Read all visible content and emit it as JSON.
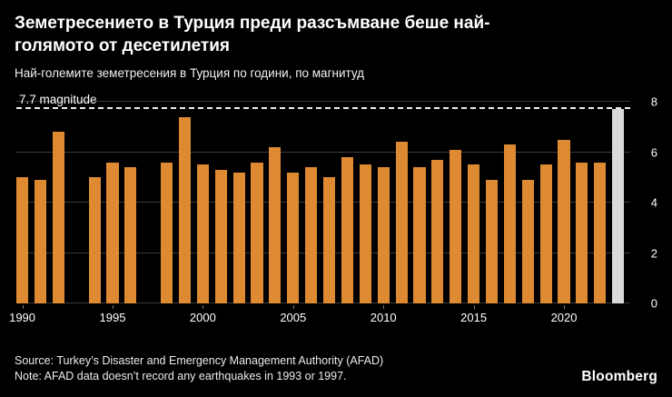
{
  "header": {
    "title": "Земетресението в Турция преди разсъмване беше най-голямото от десетилетия",
    "subtitle": "Най-големите земетресения в Турция по години, по магнитуд"
  },
  "chart_data": {
    "type": "bar",
    "title": "Най-големите земетресения в Турция по години, по магнитуд",
    "xlabel": "",
    "ylabel": "магнитуд",
    "categories": [
      1990,
      1991,
      1992,
      1993,
      1994,
      1995,
      1996,
      1997,
      1998,
      1999,
      2000,
      2001,
      2002,
      2003,
      2004,
      2005,
      2006,
      2007,
      2008,
      2009,
      2010,
      2011,
      2012,
      2013,
      2014,
      2015,
      2016,
      2017,
      2018,
      2019,
      2020,
      2021,
      2022,
      2023
    ],
    "values": [
      5.0,
      4.9,
      6.8,
      0,
      5.0,
      5.6,
      5.4,
      0,
      5.6,
      7.4,
      5.5,
      5.3,
      5.2,
      5.6,
      6.2,
      5.2,
      5.4,
      5.0,
      5.8,
      5.5,
      5.4,
      6.4,
      5.4,
      5.7,
      6.1,
      5.5,
      4.9,
      6.3,
      4.9,
      5.5,
      6.5,
      5.6,
      5.6,
      7.7
    ],
    "highlight_year": 2023,
    "annotation": {
      "label": "7.7 magnitude",
      "value": 7.7
    },
    "x_ticks": [
      1990,
      1995,
      2000,
      2005,
      2010,
      2015,
      2020
    ],
    "y_ticks": [
      0,
      2,
      4,
      6,
      8
    ],
    "ylim": [
      0,
      8
    ],
    "grid": true,
    "y_axis_side": "right",
    "bar_color": "#DE8A32",
    "highlight_color": "#D9D9D9"
  },
  "footer": {
    "source": "Source: Turkey’s Disaster and Emergency Management Authority (AFAD)",
    "note": "Note: AFAD data doesn’t record any earthquakes in 1993 or 1997.",
    "brand": "Bloomberg"
  },
  "colors": {
    "background": "#000000",
    "text": "#FFFFFF",
    "gridline": "#3A3A3A",
    "annotation_line": "#EDEDED"
  }
}
